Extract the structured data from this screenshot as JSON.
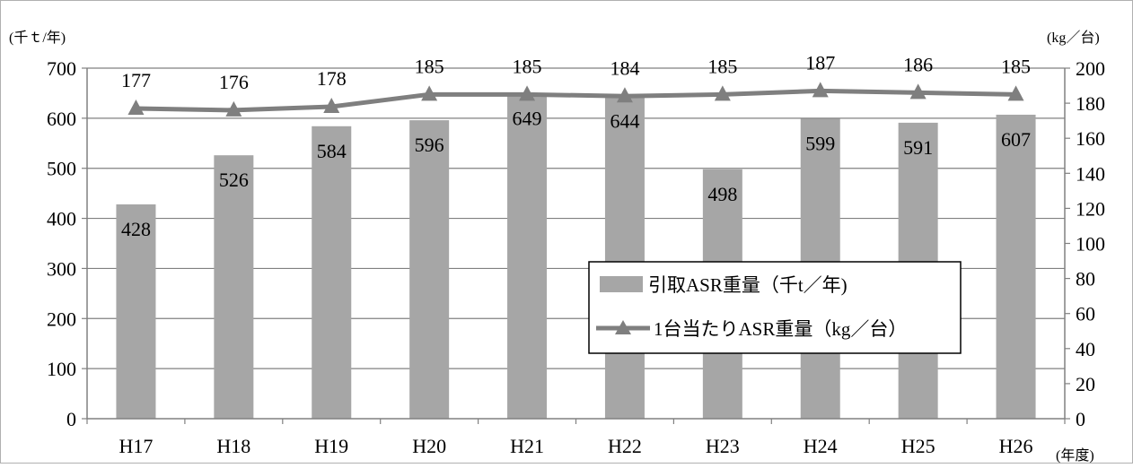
{
  "chart_data": {
    "type": "bar",
    "categories": [
      "H17",
      "H18",
      "H19",
      "H20",
      "H21",
      "H22",
      "H23",
      "H24",
      "H25",
      "H26"
    ],
    "series": [
      {
        "name": "引取ASR重量（千t／年)",
        "type": "bar",
        "axis": "left",
        "values": [
          428,
          526,
          584,
          596,
          649,
          644,
          498,
          599,
          591,
          607
        ]
      },
      {
        "name": "1台当たりASR重量（kg／台）",
        "type": "line",
        "axis": "right",
        "marker": "triangle",
        "values": [
          177,
          176,
          178,
          185,
          185,
          184,
          185,
          187,
          186,
          185
        ]
      }
    ],
    "y_left": {
      "unit_label": "(千ｔ/年)",
      "ylim": [
        0,
        700
      ],
      "ticks": [
        "0",
        "100",
        "200",
        "300",
        "400",
        "500",
        "600",
        "700"
      ]
    },
    "y_right": {
      "unit_label": "(kg／台)",
      "ylim": [
        0,
        200
      ],
      "ticks": [
        "0",
        "20",
        "40",
        "60",
        "80",
        "100",
        "120",
        "140",
        "160",
        "180",
        "200"
      ]
    },
    "x_unit_label": "(年度)",
    "legend_position": "center-right",
    "grid": "horizontal",
    "colors": {
      "bar": "#a6a6a6",
      "line": "#7f7f7f",
      "grid": "#808080",
      "axis": "#808080"
    }
  }
}
